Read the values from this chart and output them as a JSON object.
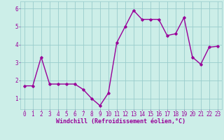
{
  "x": [
    0,
    1,
    2,
    3,
    4,
    5,
    6,
    7,
    8,
    9,
    10,
    11,
    12,
    13,
    14,
    15,
    16,
    17,
    18,
    19,
    20,
    21,
    22,
    23
  ],
  "y": [
    1.7,
    1.7,
    3.3,
    1.8,
    1.8,
    1.8,
    1.8,
    1.5,
    1.0,
    0.6,
    1.3,
    4.1,
    5.0,
    5.9,
    5.4,
    5.4,
    5.4,
    4.5,
    4.6,
    5.5,
    3.3,
    2.9,
    3.85,
    3.9
  ],
  "x_ticks": [
    0,
    1,
    2,
    3,
    4,
    5,
    6,
    7,
    8,
    9,
    10,
    11,
    12,
    13,
    14,
    15,
    16,
    17,
    18,
    19,
    20,
    21,
    22,
    23
  ],
  "y_ticks": [
    1,
    2,
    3,
    4,
    5,
    6
  ],
  "ylim": [
    0.4,
    6.4
  ],
  "xlim": [
    -0.5,
    23.5
  ],
  "line_color": "#990099",
  "marker": "D",
  "marker_size": 1.8,
  "line_width": 1.0,
  "bg_color": "#cceee8",
  "grid_color": "#99cccc",
  "xlabel": "Windchill (Refroidissement éolien,°C)",
  "xlabel_fontsize": 6.0,
  "tick_fontsize": 5.5
}
